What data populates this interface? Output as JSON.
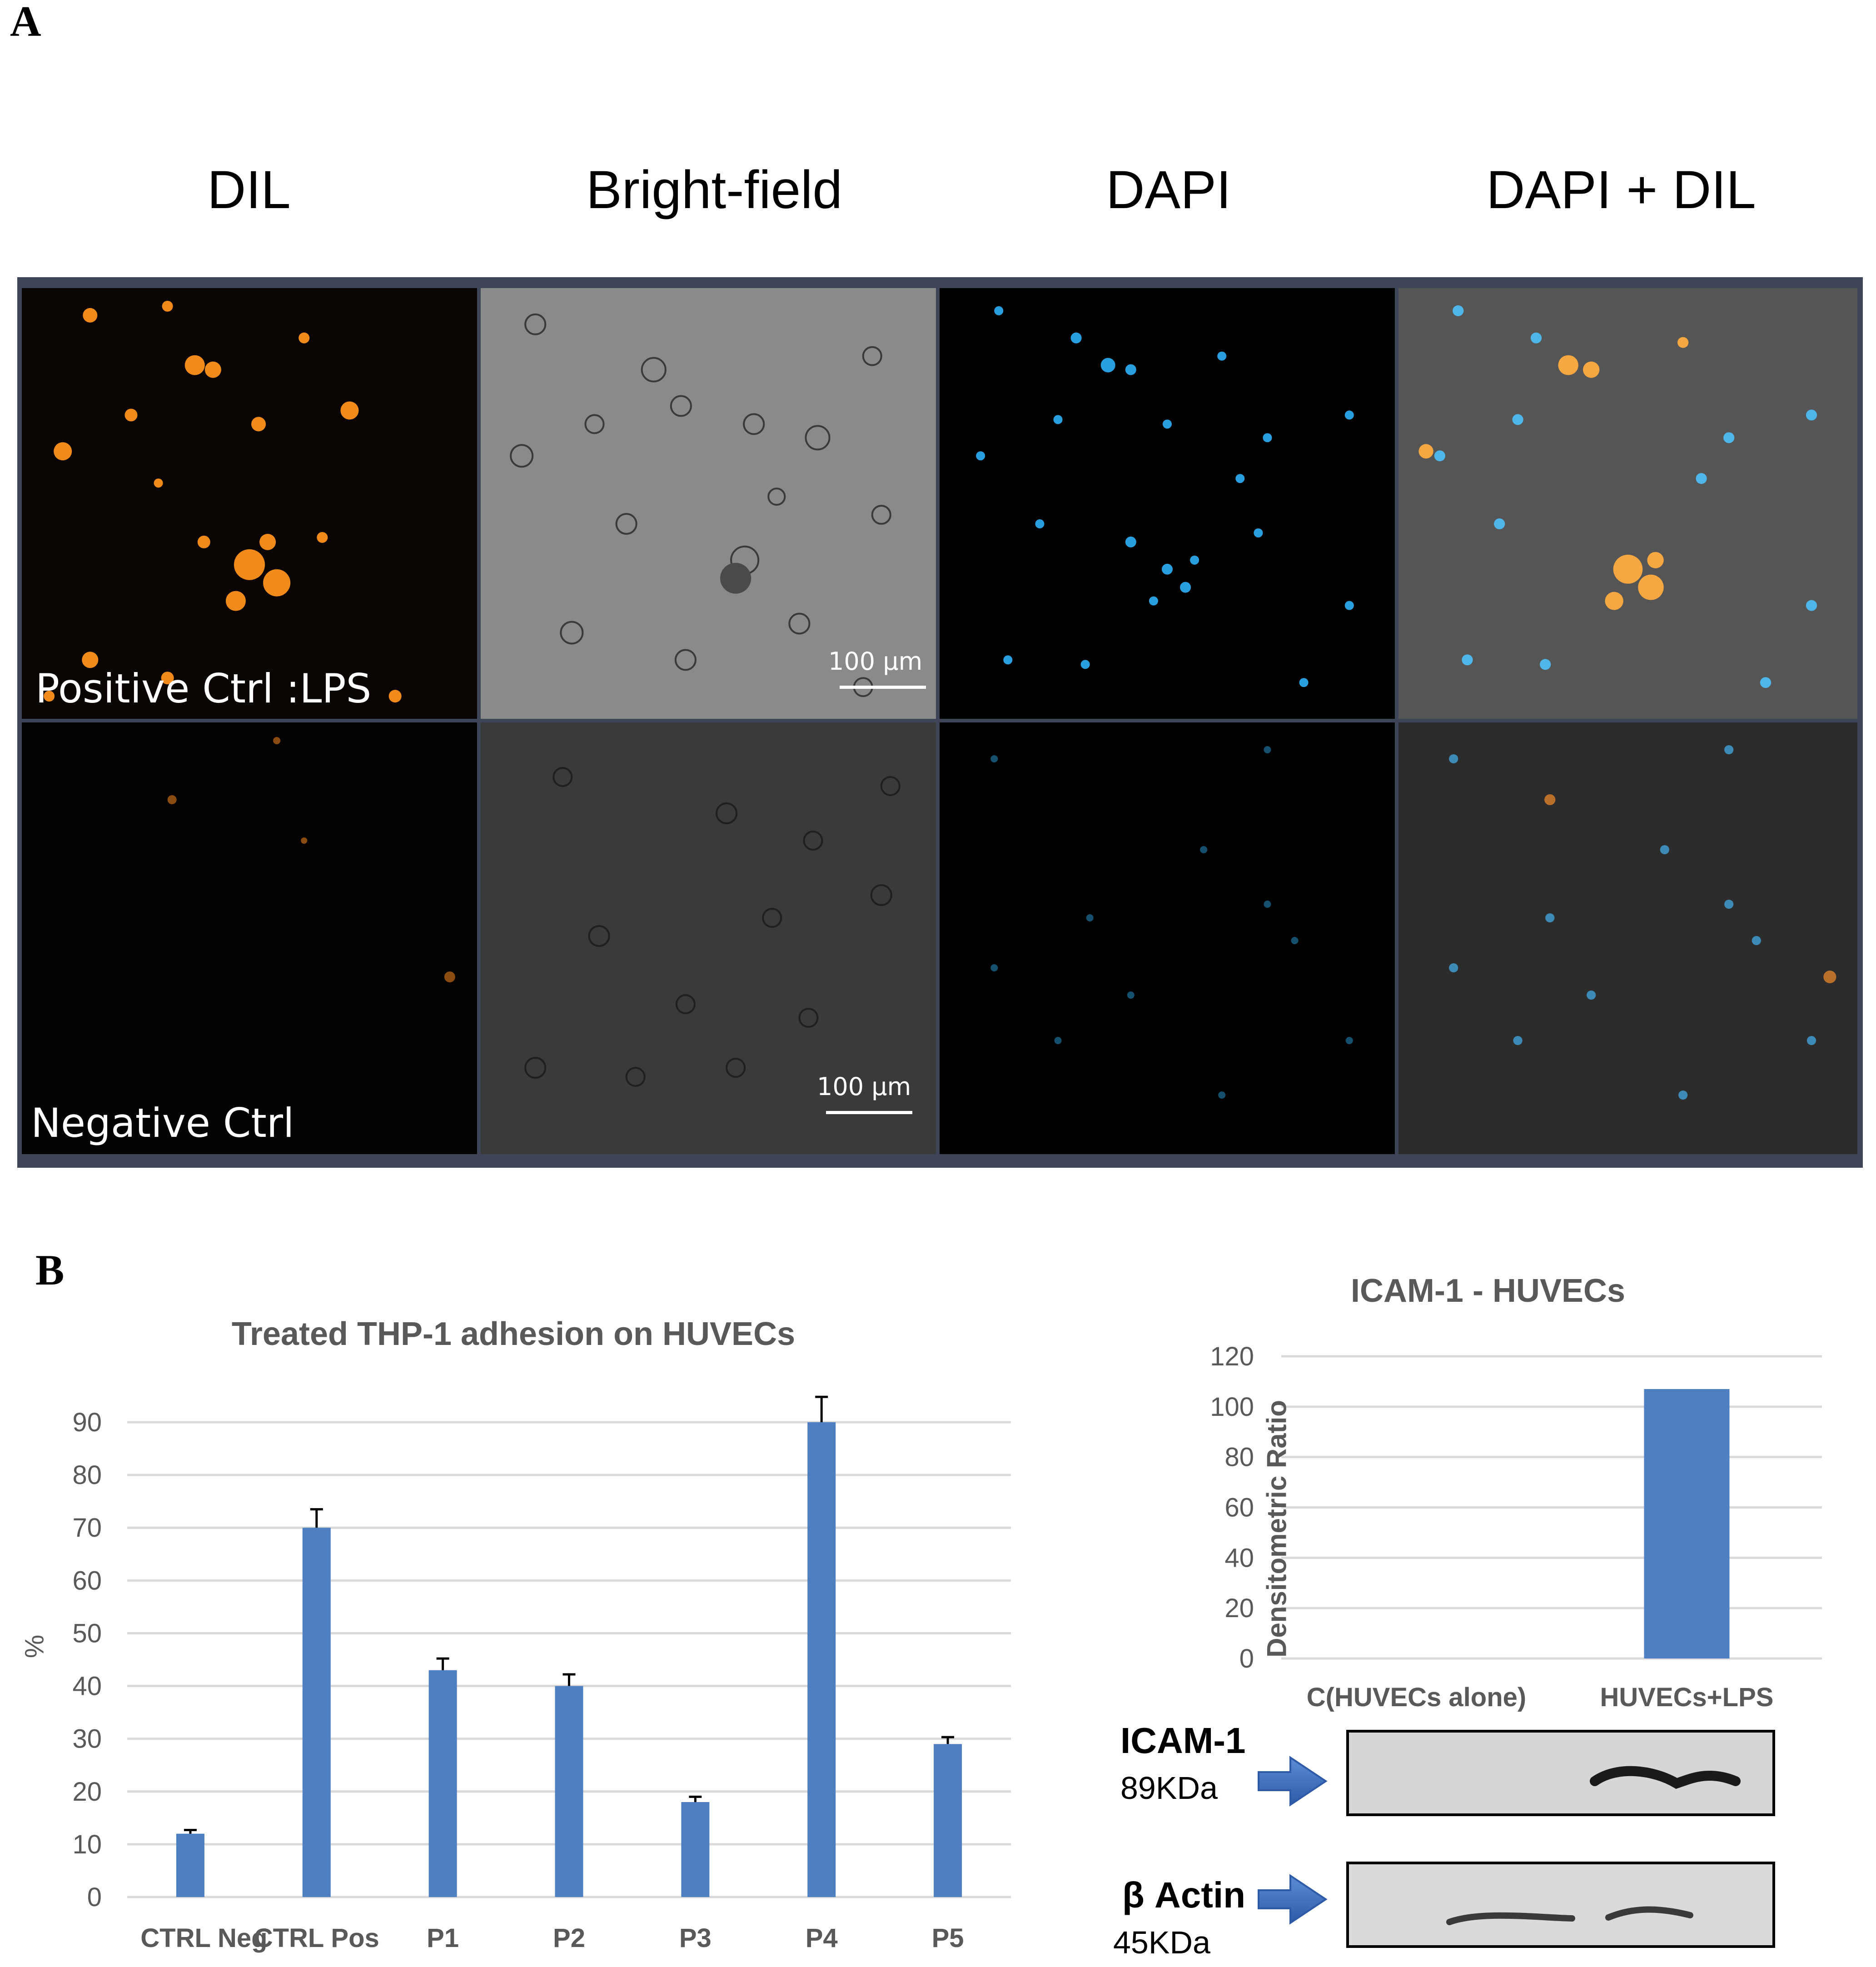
{
  "panel_a": {
    "letter": "A",
    "columns": [
      "DIL",
      "Bright-field",
      "DAPI",
      "DAPI + DIL"
    ],
    "rows": [
      {
        "label": "Positive Ctrl :LPS",
        "scale_bar": "100 µm"
      },
      {
        "label": "Negative Ctrl",
        "scale_bar": "100 µm"
      }
    ]
  },
  "panel_b": {
    "letter": "B",
    "blot": {
      "bands": [
        {
          "name": "ICAM-1",
          "weight": "89KDa"
        },
        {
          "name": "β Actin",
          "weight": "45KDa"
        }
      ]
    }
  },
  "chart_data": [
    {
      "type": "bar",
      "title": "Treated THP-1 adhesion on HUVECs",
      "ylabel": "%",
      "xlabel": "",
      "ylim": [
        0,
        90
      ],
      "yticks": [
        0,
        10,
        20,
        30,
        40,
        50,
        60,
        70,
        80,
        90
      ],
      "categories": [
        "CTRL Neg",
        "CTRL Pos",
        "P1",
        "P2",
        "P3",
        "P4",
        "P5"
      ],
      "values": [
        12,
        70,
        43,
        40,
        18,
        90,
        29
      ],
      "errors": [
        0.7,
        3.5,
        2.2,
        2.2,
        1.0,
        4.8,
        1.3
      ],
      "grid": true,
      "color": "#4e7fc0"
    },
    {
      "type": "bar",
      "title": "ICAM-1 - HUVECs",
      "ylabel": "Densitometric Ratio",
      "xlabel": "",
      "ylim": [
        0,
        120
      ],
      "yticks": [
        0,
        20,
        40,
        60,
        80,
        100,
        120
      ],
      "categories": [
        "C(HUVECs alone)",
        "HUVECs+LPS"
      ],
      "values": [
        0,
        107
      ],
      "grid": true,
      "color": "#4e7fc0"
    }
  ]
}
